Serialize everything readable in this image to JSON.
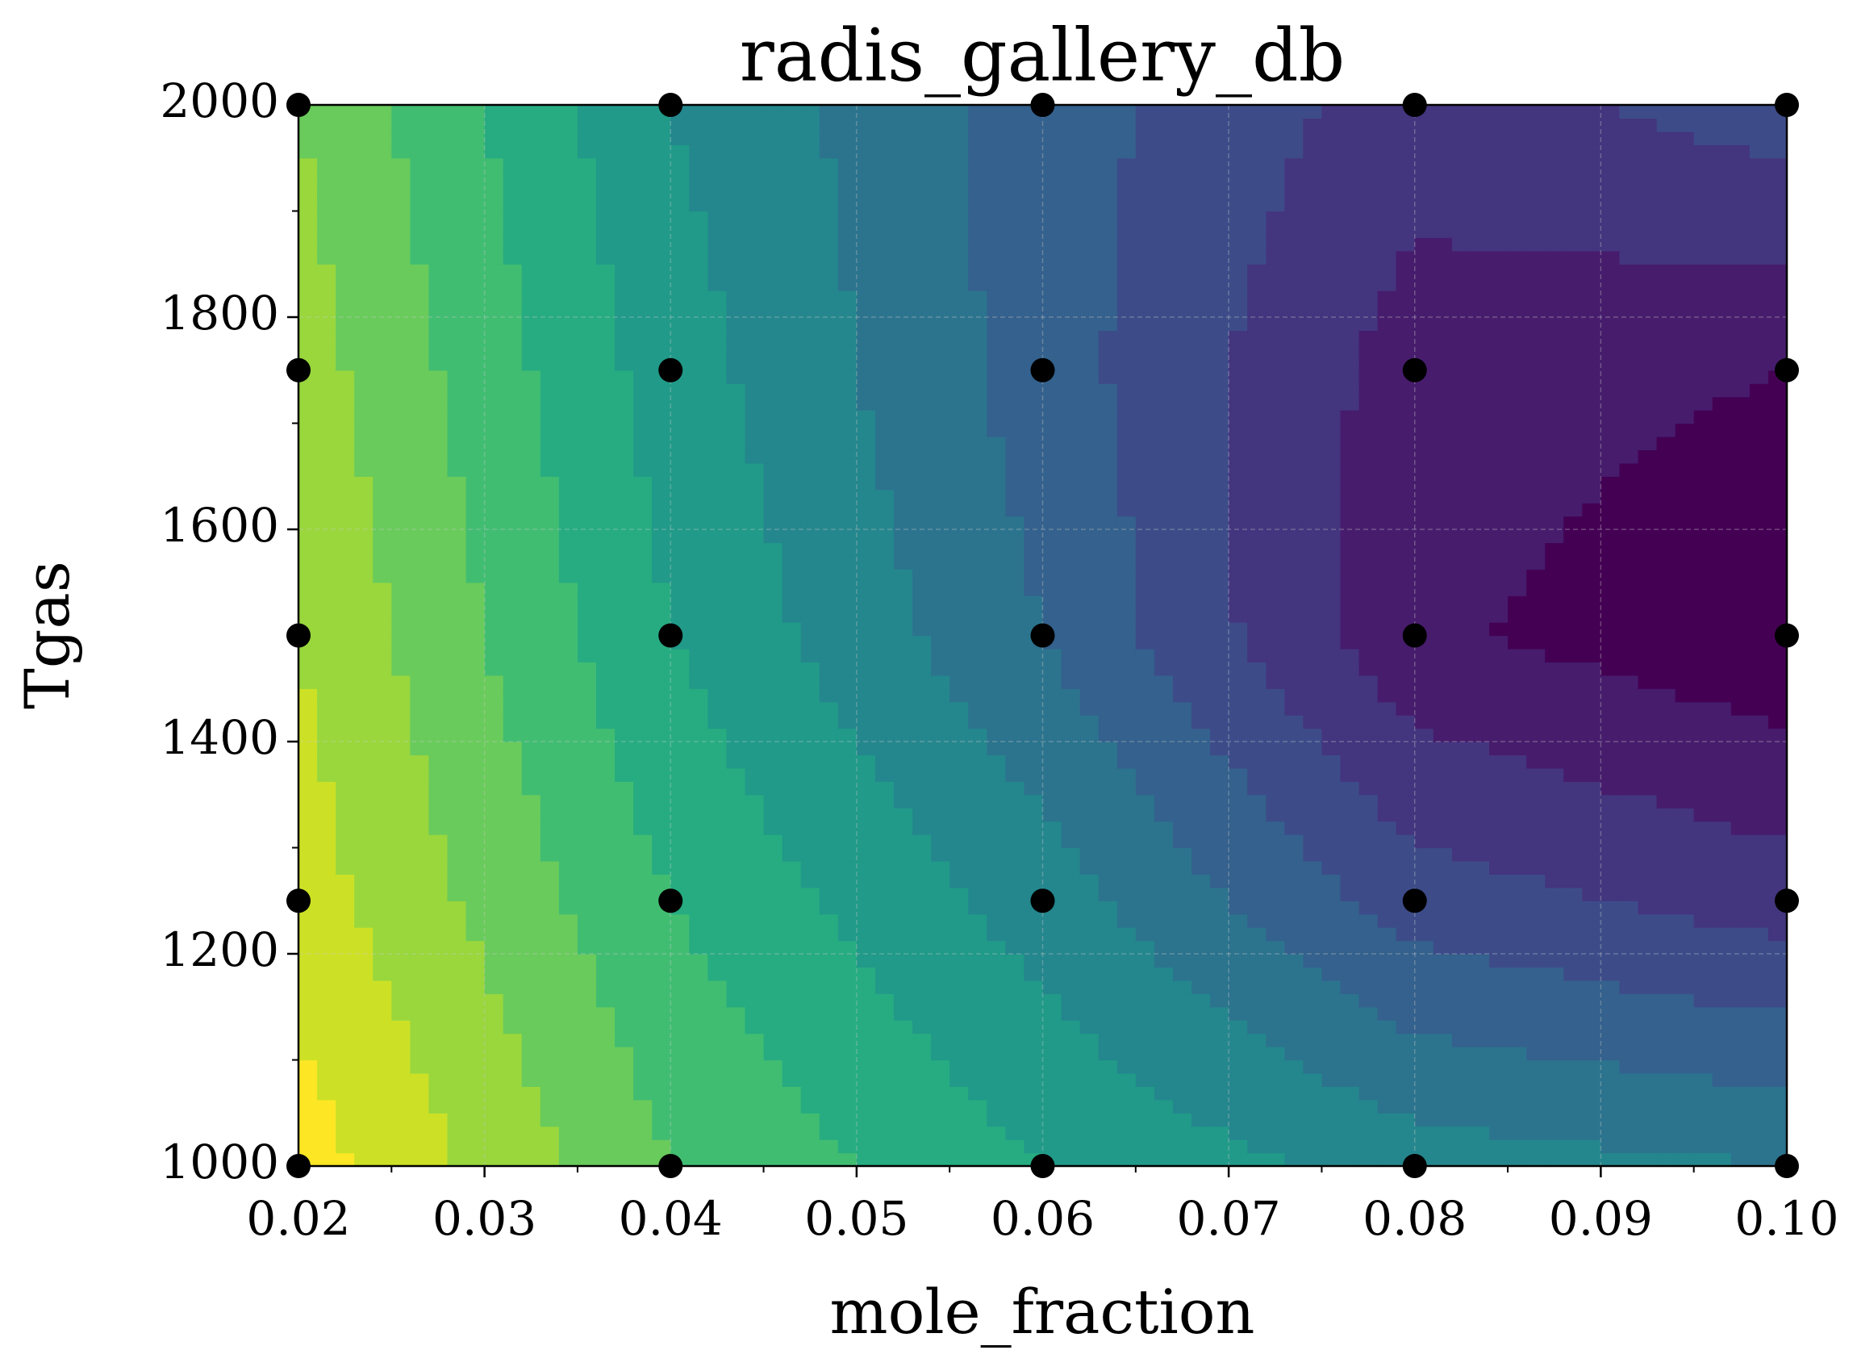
{
  "chart_data": {
    "type": "contourf",
    "title": "radis_gallery_db",
    "x_label": "mole_fraction",
    "y_label": "Tgas",
    "x": [
      0.02,
      0.04,
      0.06,
      0.08,
      0.1
    ],
    "y": [
      1000,
      1250,
      1500,
      1750,
      2000
    ],
    "z": [
      [
        13.5,
        10,
        8,
        6.5,
        6
      ],
      [
        12.5,
        9,
        6.5,
        3.5,
        2.5
      ],
      [
        12,
        8,
        5,
        1.2,
        0.2
      ],
      [
        11.5,
        7.5,
        4.5,
        1.5,
        1
      ],
      [
        11,
        7,
        4.5,
        2.5,
        3.5
      ]
    ],
    "colormap": "viridis",
    "point_color": "#000000",
    "xlim": [
      0.02,
      0.1
    ],
    "ylim": [
      1000,
      2000
    ],
    "xticks": [
      0.02,
      0.03,
      0.04,
      0.05,
      0.06,
      0.07,
      0.08,
      0.09,
      {
        "value": 0.1,
        "label": "0.10"
      }
    ],
    "yticks": [
      1000,
      1200,
      1400,
      1600,
      1800,
      2000
    ],
    "grid": true
  }
}
